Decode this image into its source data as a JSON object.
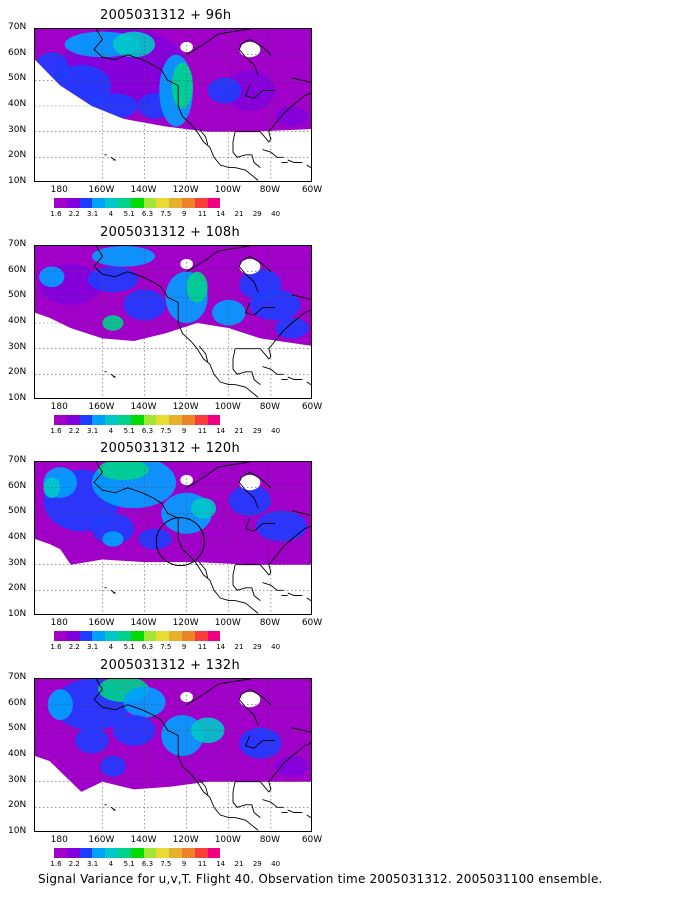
{
  "panels": [
    {
      "title": "2005031312 + 96h"
    },
    {
      "title": "2005031312 + 108h"
    },
    {
      "title": "2005031312 + 120h"
    },
    {
      "title": "2005031312 + 132h"
    }
  ],
  "lat_labels": [
    "70N",
    "60N",
    "50N",
    "40N",
    "30N",
    "20N",
    "10N"
  ],
  "lon_labels": [
    "180",
    "160W",
    "140W",
    "120W",
    "100W",
    "80W",
    "60W"
  ],
  "colorbar": {
    "labels": [
      "1.6",
      "2.2",
      "3.1",
      "4",
      "5.1",
      "6.3",
      "7.5",
      "9",
      "11",
      "14",
      "21",
      "29",
      "40"
    ],
    "colors": [
      "#a000c8",
      "#8200dc",
      "#1e3cff",
      "#00a0ff",
      "#00c8c8",
      "#00d28c",
      "#00dc00",
      "#a0e632",
      "#e6dc32",
      "#e6af2d",
      "#f08228",
      "#fa3c3c",
      "#f00082"
    ]
  },
  "caption": "Signal Variance for u,v,T. Flight 40. Observation time 2005031312. 2005031100 ensemble."
}
